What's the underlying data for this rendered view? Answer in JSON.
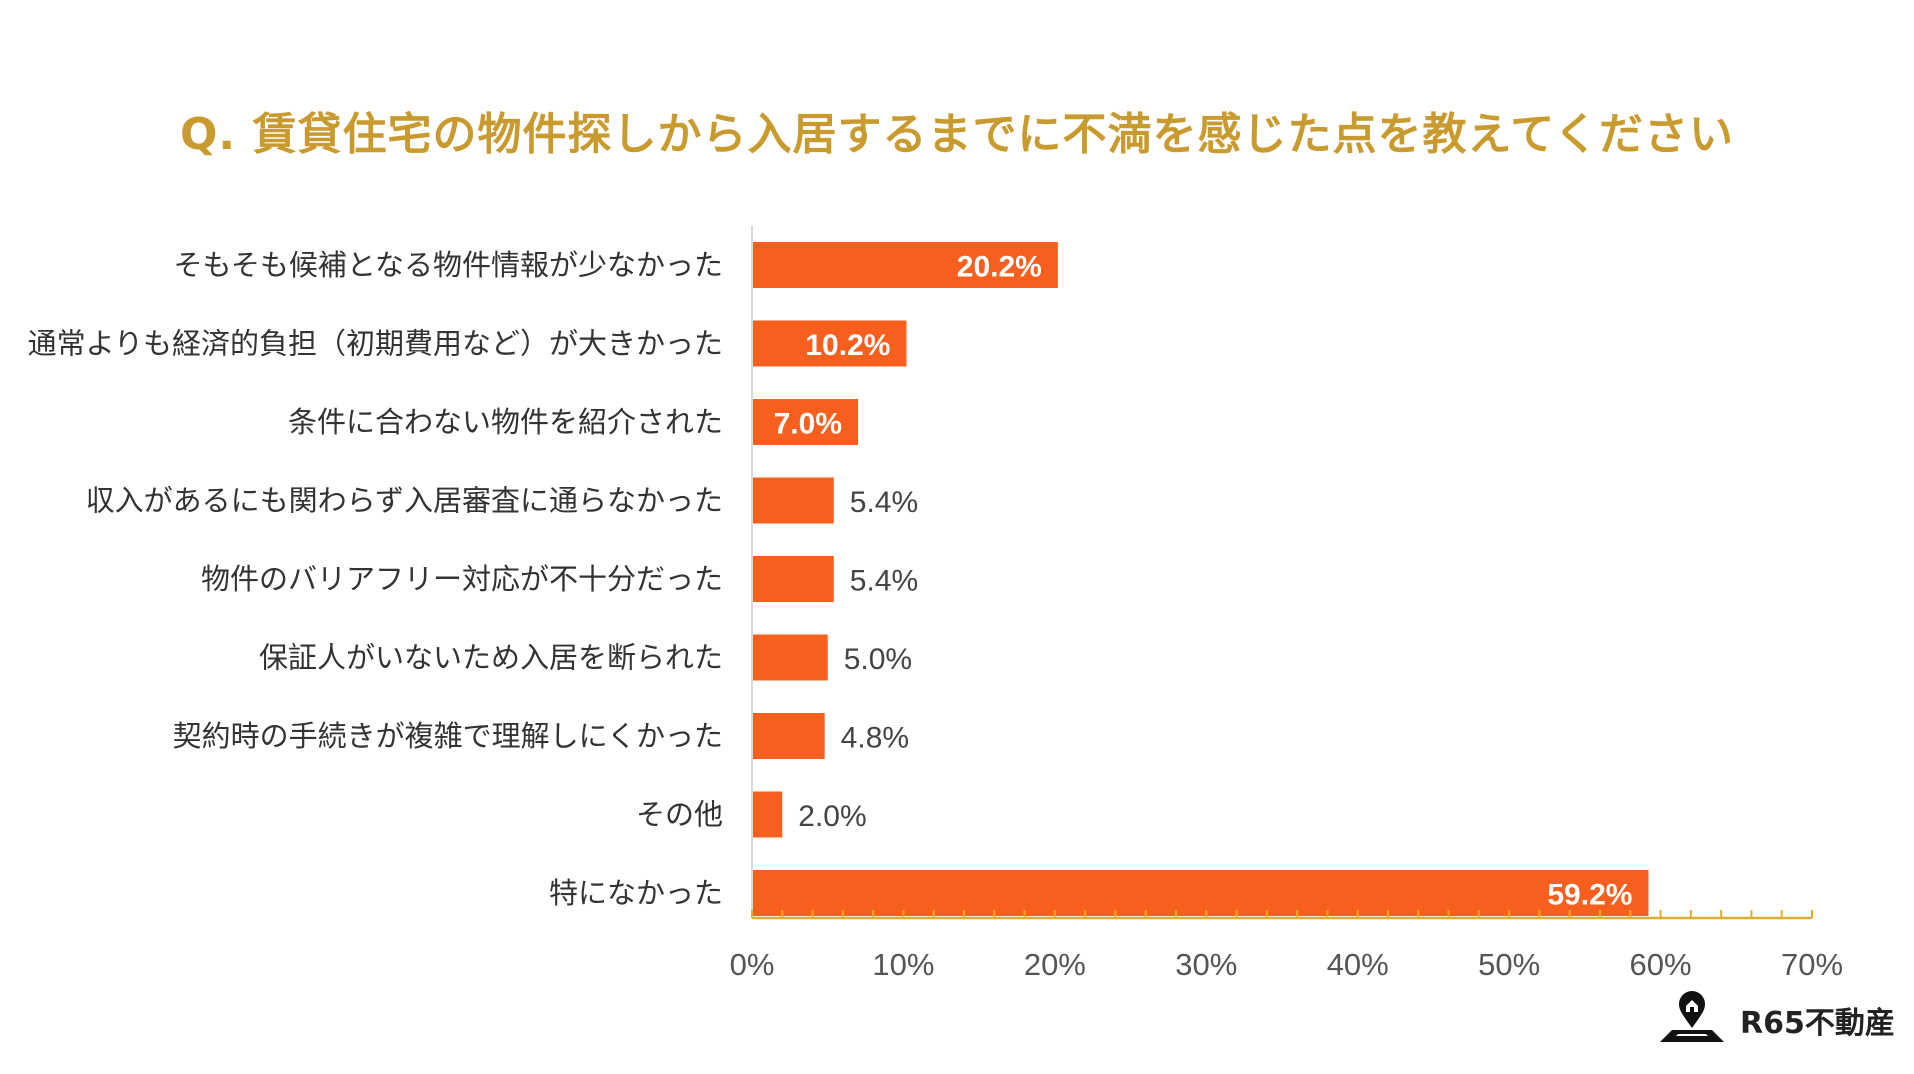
{
  "chart_data": {
    "type": "bar",
    "orientation": "horizontal",
    "title": "Q. 賃貸住宅の物件探しから入居するまでに不満を感じた点を教えてください",
    "categories": [
      "そもそも候補となる物件情報が少なかった",
      "通常よりも経済的負担（初期費用など）が大きかった",
      "条件に合わない物件を紹介された",
      "収入があるにも関わらず入居審査に通らなかった",
      "物件のバリアフリー対応が不十分だった",
      "保証人がいないため入居を断られた",
      "契約時の手続きが複雑で理解しにくかった",
      "その他",
      "特になかった"
    ],
    "values": [
      20.2,
      10.2,
      7.0,
      5.4,
      5.4,
      5.0,
      4.8,
      2.0,
      59.2
    ],
    "value_labels": [
      "20.2%",
      "10.2%",
      "7.0%",
      "5.4%",
      "5.4%",
      "5.0%",
      "4.8%",
      "2.0%",
      "59.2%"
    ],
    "xlim": [
      0,
      70
    ],
    "xticks": [
      "0%",
      "10%",
      "20%",
      "30%",
      "40%",
      "50%",
      "60%",
      "70%"
    ],
    "bar_color": "#F75F1E",
    "title_color": "#C99A2E",
    "axis_color": "#E0AC2E",
    "grid": false,
    "legend": "none"
  },
  "brand": {
    "name": "R65不動産",
    "icon": "location-pin-house-icon"
  }
}
